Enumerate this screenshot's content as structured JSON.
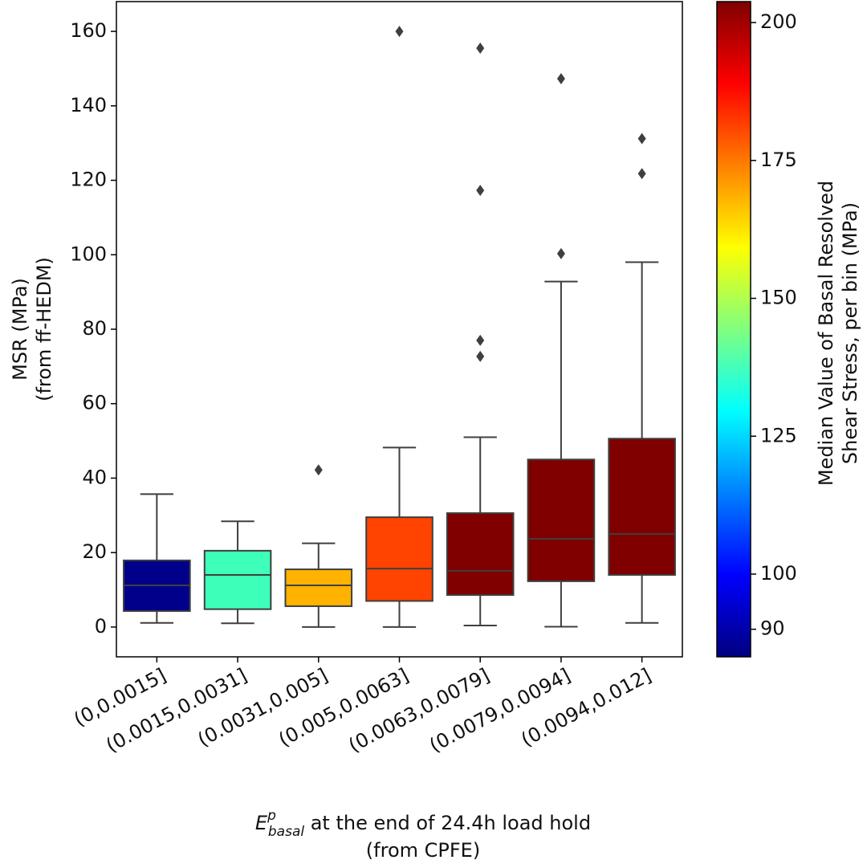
{
  "chart_data": {
    "type": "box",
    "x_label": {
      "symbol": "E",
      "sup": "p",
      "sub": "basal",
      "text": " at the end of 24.4h load hold",
      "line2": "(from CPFE)"
    },
    "y_label": [
      "MSR (MPa)",
      "(from ff-HEDM)"
    ],
    "categories": [
      "(0,0.0015]",
      "(0.0015,0.0031]",
      "(0.0031,0.005]",
      "(0.005,0.0063]",
      "(0.0063,0.0079]",
      "(0.0079,0.0094]",
      "(0.0094,0.012]"
    ],
    "boxes": [
      {
        "whislo": 1.1,
        "q1": 4.3,
        "med": 11.2,
        "q3": 17.9,
        "whishi": 35.7,
        "fliers": [],
        "color": "#00008b"
      },
      {
        "whislo": 1.0,
        "q1": 4.8,
        "med": 14.0,
        "q3": 20.5,
        "whishi": 28.4,
        "fliers": [],
        "color": "#3dffba"
      },
      {
        "whislo": 0.0,
        "q1": 5.6,
        "med": 11.2,
        "q3": 15.5,
        "whishi": 22.5,
        "fliers": [
          42.2
        ],
        "color": "#ffb300"
      },
      {
        "whislo": 0.0,
        "q1": 7.0,
        "med": 15.7,
        "q3": 29.5,
        "whishi": 48.2,
        "fliers": [
          160.0
        ],
        "color": "#ff4300"
      },
      {
        "whislo": 0.4,
        "q1": 8.6,
        "med": 15.1,
        "q3": 30.6,
        "whishi": 51.0,
        "fliers": [
          72.7,
          77.0,
          117.3,
          155.5
        ],
        "color": "#800000"
      },
      {
        "whislo": 0.1,
        "q1": 12.3,
        "med": 23.7,
        "q3": 45.0,
        "whishi": 92.8,
        "fliers": [
          100.3,
          147.3
        ],
        "color": "#800000"
      },
      {
        "whislo": 1.1,
        "q1": 14.0,
        "med": 25.0,
        "q3": 50.6,
        "whishi": 98.0,
        "fliers": [
          121.8,
          131.2
        ],
        "color": "#800000"
      }
    ],
    "ylim": [
      -8,
      168
    ],
    "yticks": [
      0,
      20,
      40,
      60,
      80,
      100,
      120,
      140,
      160
    ],
    "colorbar": {
      "colormap": "jet",
      "lim": [
        85,
        203.8
      ],
      "ticks": [
        90,
        100,
        125,
        150,
        175,
        200
      ],
      "label": [
        "Median Value of Basal Resolved",
        "Shear Stress, per bin (MPa)"
      ]
    }
  }
}
